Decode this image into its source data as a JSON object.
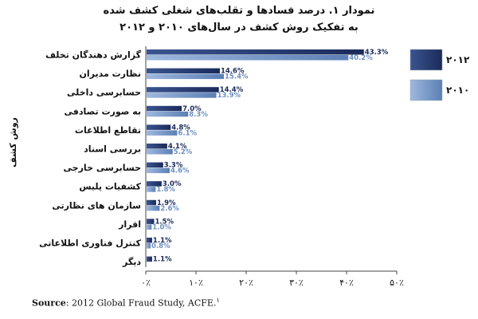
{
  "chart_data": {
    "type": "bar",
    "orientation": "horizontal",
    "title": "نمودار ۱. درصد فسادها و تقلب‌های شغلی کشف شده",
    "subtitle": "به تفکیک روش کشف در سال‌های ۲۰۱۰ و ۲۰۱۲",
    "ylabel": "روش کشف",
    "xlim": [
      0,
      50
    ],
    "xticks": [
      "۰٪",
      "۱۰٪",
      "۲۰٪",
      "۳۰٪",
      "۴۰٪",
      "۵۰٪"
    ],
    "categories": [
      "گزارش دهندگان تخلف",
      "نظارت مدیران",
      "حسابرسی داخلی",
      "به صورت تصادفی",
      "تقاطع اطلاعات",
      "بررسی اسناد",
      "حسابرسی خارجی",
      "کشفیات پلیس",
      "سازمان های نظارتی",
      "اقرار",
      "کنترل فناوری اطلاعاتی",
      "دیگر"
    ],
    "series": [
      {
        "name": "۲۰۱۲",
        "color": "#1b2a5a",
        "values": [
          43.3,
          14.6,
          14.4,
          7.0,
          4.8,
          4.1,
          3.3,
          3.0,
          1.9,
          1.5,
          1.1,
          1.1
        ],
        "labels": [
          "43.3%",
          "14.6%",
          "14.4%",
          "7.0%",
          "4.8%",
          "4.1%",
          "3.3%",
          "3.0%",
          "1.9%",
          "1.5%",
          "1.1%",
          "1.1%"
        ]
      },
      {
        "name": "۲۰۱۰",
        "color": "#5b7fb5",
        "values": [
          40.2,
          15.4,
          13.9,
          8.3,
          6.1,
          5.2,
          4.6,
          1.8,
          2.6,
          1.0,
          0.8,
          null
        ],
        "labels": [
          "40.2%",
          "15.4%",
          "13.9%",
          "8.3%",
          "6.1%",
          "5.2%",
          "4.6%",
          "1.8%",
          "2.6%",
          "1.0%",
          "0.8%",
          ""
        ]
      }
    ]
  },
  "source": {
    "label": "Source",
    "text": ": 2012 Global Fraud Study, ACFE.",
    "footnote_mark": "۱"
  }
}
